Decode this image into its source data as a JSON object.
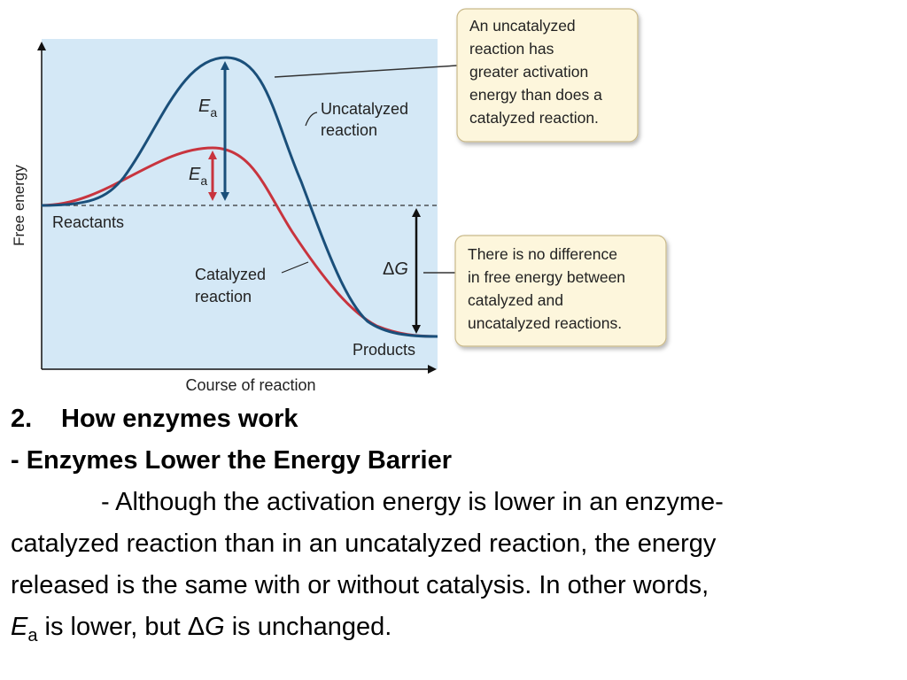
{
  "diagram": {
    "y_axis_label": "Free energy",
    "x_axis_label": "Course of reaction",
    "curve_labels": {
      "uncatalyzed": [
        "Uncatalyzed",
        "reaction"
      ],
      "catalyzed": [
        "Catalyzed",
        "reaction"
      ]
    },
    "reactants_label": "Reactants",
    "products_label": "Products",
    "ea_symbol": "E",
    "ea_subscript": "a",
    "delta_symbol": "Δ",
    "g_symbol": "G",
    "callouts": {
      "top": [
        "An uncatalyzed",
        "reaction has",
        "greater activation",
        "energy than does a",
        "catalyzed reaction."
      ],
      "bottom": [
        "There is no difference",
        "in free energy between",
        "catalyzed and",
        "uncatalyzed reactions."
      ]
    },
    "colors": {
      "panel_bg": "#d4e8f6",
      "uncatalyzed_curve": "#1a4f7a",
      "catalyzed_curve": "#c8343e",
      "callout_bg": "#fdf6dc",
      "callout_border": "#c9b98a"
    }
  },
  "slide": {
    "heading_number": "2.",
    "heading": "How enzymes work",
    "subheading": "- Enzymes Lower the Energy Barrier",
    "body_line1": "- Although the activation energy is lower in an enzyme-",
    "body_line2": "catalyzed reaction than in an uncatalyzed reaction, the energy",
    "body_line3": "released is the same with or without catalysis. In other words,",
    "body_e": "E",
    "body_a": "a",
    "body_mid": " is lower, but ",
    "body_delta": "Δ",
    "body_g": "G",
    "body_end": " is unchanged."
  }
}
